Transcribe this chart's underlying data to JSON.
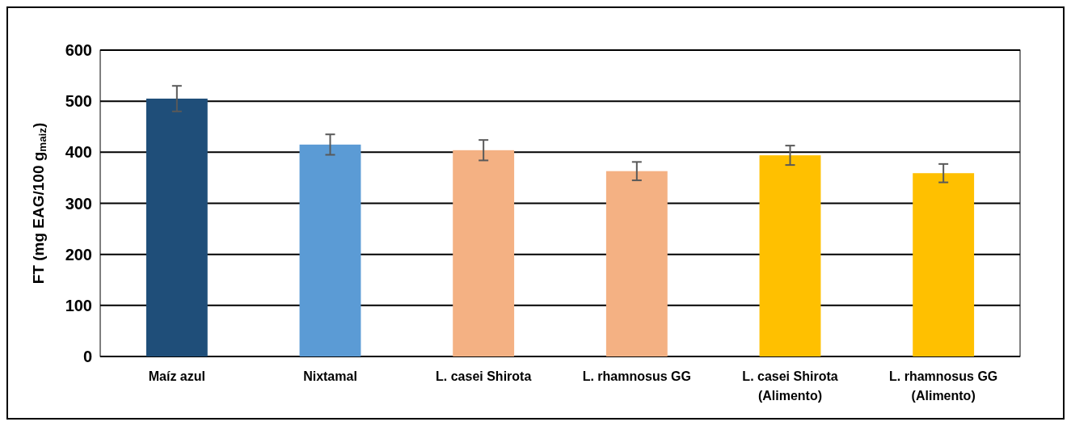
{
  "chart_data": {
    "type": "bar",
    "ylabel": "FT (mg EAG/100 g$_{maiz}$)",
    "categories": [
      "Maíz azul",
      "Nixtamal",
      "L. casei Shirota",
      "L. rhamnosus GG",
      "L. casei Shirota\n(Alimento)",
      "L. rhamnosus GG\n(Alimento)"
    ],
    "values": [
      505,
      415,
      404,
      363,
      394,
      359
    ],
    "errors": [
      25,
      20,
      20,
      18,
      19,
      18
    ],
    "colors": [
      "#1f4e79",
      "#5b9bd5",
      "#f4b183",
      "#f4b183",
      "#ffc000",
      "#ffc000"
    ],
    "ylim": [
      0,
      600
    ],
    "yticks": [
      0,
      100,
      200,
      300,
      400,
      500,
      600
    ],
    "grid": "y"
  }
}
